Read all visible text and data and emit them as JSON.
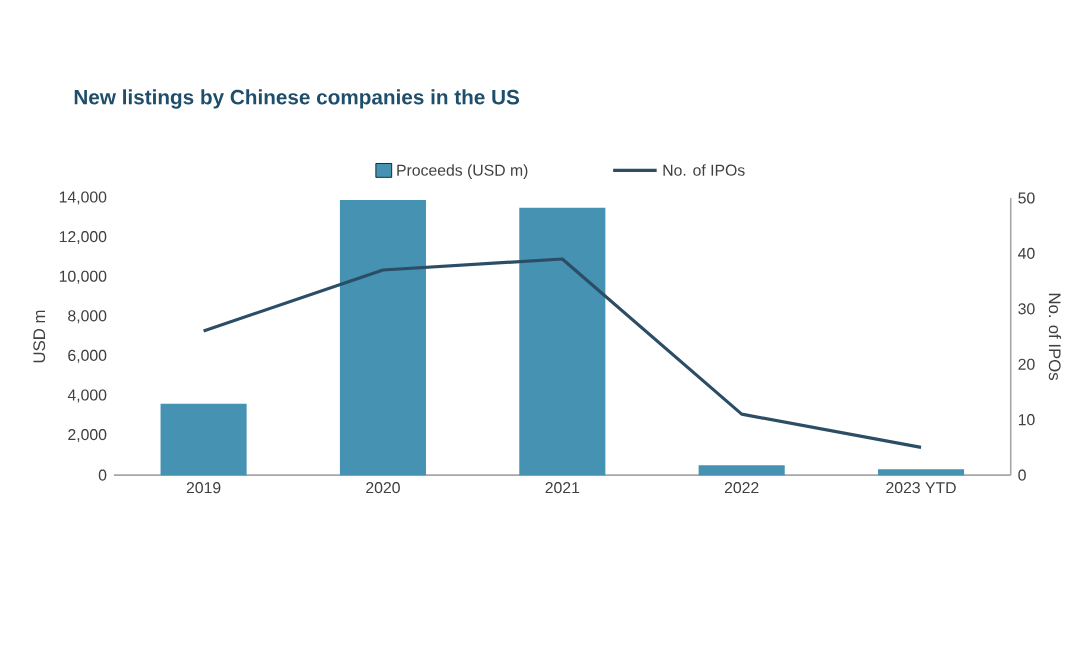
{
  "chart_data": {
    "type": "bar",
    "title": "New listings by Chinese companies in the US",
    "categories": [
      "2019",
      "2020",
      "2021",
      "2022",
      "2023 YTD"
    ],
    "series": [
      {
        "name": "Proceeds (USD m)",
        "color": "#4592b2",
        "values": [
          3600,
          13900,
          13500,
          500,
          300
        ]
      },
      {
        "name": "No. of IPOs",
        "type": "line",
        "axis": "y2",
        "color": "#2b4d66",
        "values": [
          26,
          37,
          39,
          11,
          5
        ]
      }
    ],
    "ylabel": "USD m",
    "y2label": "No. of IPOs",
    "ylim": [
      0,
      14000
    ],
    "yticks": [
      0,
      {
        "value": 2000,
        "label": "2,000"
      },
      {
        "value": 4000,
        "label": "4,000"
      },
      {
        "value": 6000,
        "label": "6,000"
      },
      {
        "value": 8000,
        "label": "8,000"
      },
      {
        "value": 10000,
        "label": "10,000"
      },
      {
        "value": 12000,
        "label": "12,000"
      },
      {
        "value": 14000,
        "label": "14,000"
      }
    ],
    "y2lim": [
      0,
      50
    ],
    "y2ticks": [
      0,
      10,
      20,
      30,
      40,
      50
    ],
    "legend": "top"
  }
}
